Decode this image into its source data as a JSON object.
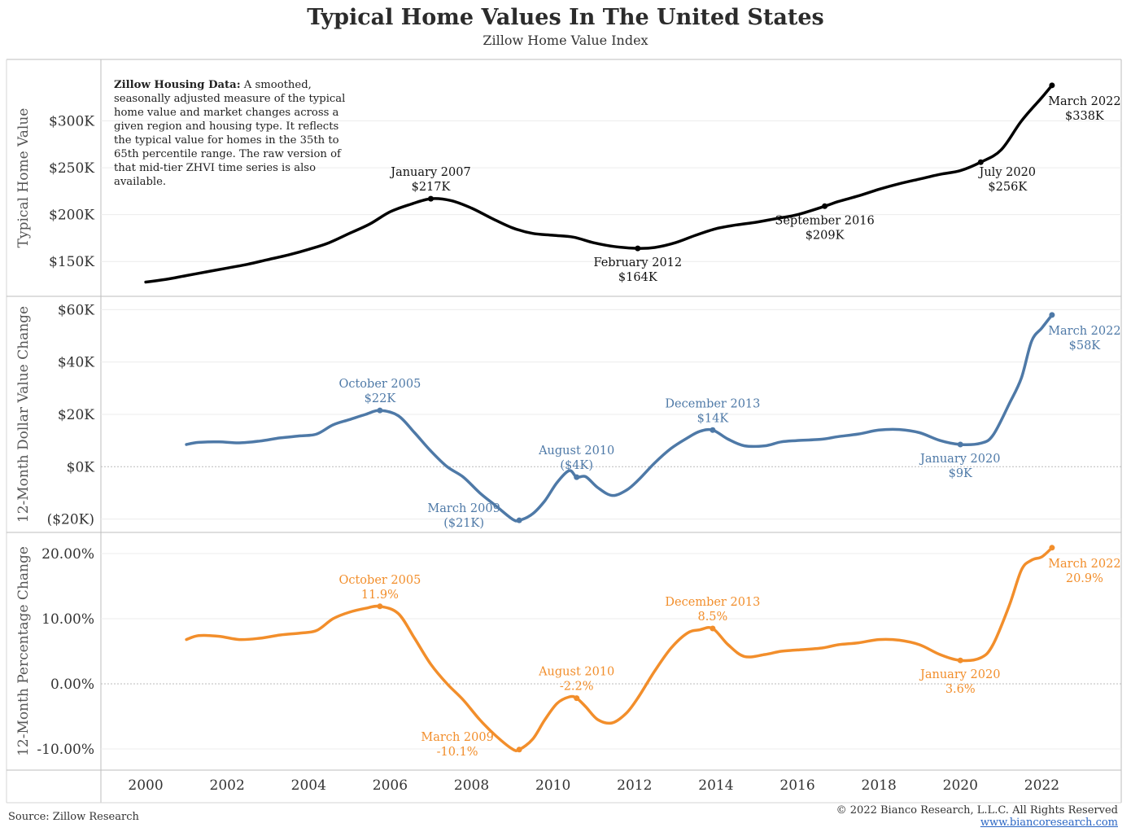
{
  "title": "Typical Home Values In The United States",
  "subtitle": "Zillow Home Value Index",
  "note": {
    "bold": "Zillow Housing Data:",
    "text": "A smoothed, seasonally adjusted measure of the typical home value and market changes across a given region and housing type. It reflects the typical value for homes in the 35th to 65th percentile range. The raw version of that mid-tier ZHVI time series is also available."
  },
  "footer": {
    "source": "Source: Zillow Research",
    "copyright": "© 2022 Bianco Research, L.L.C. All Rights Reserved",
    "url": "www.biancoresearch.com"
  },
  "chart_data": [
    {
      "type": "line",
      "id": "values",
      "ylabel": "Typical Home Value",
      "ylim": [
        125,
        350
      ],
      "yticks": [
        150,
        200,
        250,
        300
      ],
      "ytick_labels": [
        "$150K",
        "$200K",
        "$250K",
        "$300K"
      ],
      "color": "#000000",
      "x": [
        2000.0,
        2000.5,
        2001.0,
        2001.5,
        2002.0,
        2002.5,
        2003.0,
        2003.5,
        2004.0,
        2004.5,
        2005.0,
        2005.5,
        2006.0,
        2006.5,
        2007.0,
        2007.5,
        2008.0,
        2008.5,
        2009.0,
        2009.5,
        2010.0,
        2010.5,
        2011.0,
        2011.5,
        2012.08,
        2012.5,
        2013.0,
        2013.5,
        2014.0,
        2014.5,
        2015.0,
        2015.5,
        2016.0,
        2016.67,
        2017.0,
        2017.5,
        2018.0,
        2018.5,
        2019.0,
        2019.5,
        2020.0,
        2020.5,
        2021.0,
        2021.5,
        2022.0,
        2022.25
      ],
      "y": [
        128,
        131,
        135,
        139,
        143,
        147,
        152,
        157,
        163,
        170,
        180,
        190,
        203,
        211,
        217,
        215,
        207,
        196,
        186,
        180,
        178,
        176,
        170,
        166,
        164,
        165,
        170,
        178,
        185,
        189,
        192,
        196,
        200,
        209,
        214,
        220,
        227,
        233,
        238,
        243,
        247,
        256,
        269,
        300,
        325,
        338
      ],
      "annotations": [
        {
          "x": 2007.0,
          "y": 217,
          "lines": [
            "January 2007",
            "$217K"
          ],
          "pos": "above"
        },
        {
          "x": 2012.08,
          "y": 164,
          "lines": [
            "February 2012",
            "$164K"
          ],
          "pos": "below"
        },
        {
          "x": 2016.67,
          "y": 209,
          "lines": [
            "September 2016",
            "$209K"
          ],
          "pos": "below"
        },
        {
          "x": 2020.5,
          "y": 256,
          "lines": [
            "July 2020",
            "$256K"
          ],
          "pos": "below-right"
        },
        {
          "x": 2022.25,
          "y": 338,
          "lines": [
            "March 2022",
            "$338K"
          ],
          "pos": "right"
        }
      ]
    },
    {
      "type": "line",
      "id": "dollar_change",
      "ylabel": "12-Month Dollar Value Change",
      "ylim": [
        -22,
        62
      ],
      "yticks": [
        -20,
        0,
        20,
        40,
        60
      ],
      "ytick_labels": [
        "($20K)",
        "$0K",
        "$20K",
        "$40K",
        "$60K"
      ],
      "color": "#4e79a7",
      "x": [
        2001.0,
        2001.3,
        2001.8,
        2002.3,
        2002.8,
        2003.3,
        2003.8,
        2004.2,
        2004.6,
        2005.0,
        2005.4,
        2005.75,
        2006.2,
        2006.6,
        2007.0,
        2007.4,
        2007.8,
        2008.2,
        2008.6,
        2009.0,
        2009.17,
        2009.5,
        2009.8,
        2010.1,
        2010.4,
        2010.58,
        2010.8,
        2011.1,
        2011.45,
        2011.8,
        2012.1,
        2012.5,
        2012.9,
        2013.3,
        2013.6,
        2013.92,
        2014.3,
        2014.7,
        2015.2,
        2015.6,
        2016.0,
        2016.6,
        2017.0,
        2017.5,
        2018.0,
        2018.5,
        2019.0,
        2019.5,
        2020.0,
        2020.5,
        2020.8,
        2021.2,
        2021.5,
        2021.75,
        2022.0,
        2022.25
      ],
      "y": [
        8.5,
        9.3,
        9.5,
        9.1,
        9.8,
        11.0,
        11.8,
        12.5,
        16.0,
        18.0,
        20.0,
        21.5,
        19.5,
        13.0,
        6.0,
        0.0,
        -4.0,
        -10.0,
        -15.0,
        -20.0,
        -20.5,
        -18.0,
        -13.0,
        -6.0,
        -1.5,
        -4.0,
        -3.8,
        -8.0,
        -11.0,
        -9.0,
        -5.0,
        1.5,
        7.0,
        11.0,
        13.5,
        14.0,
        10.5,
        8.0,
        8.0,
        9.5,
        10.0,
        10.5,
        11.5,
        12.5,
        14.0,
        14.2,
        13.0,
        10.0,
        8.5,
        9.0,
        12.0,
        24.0,
        34.0,
        48.0,
        53.0,
        58.0
      ],
      "annotations": [
        {
          "x": 2005.75,
          "y": 21.5,
          "lines": [
            "October 2005",
            "$22K"
          ],
          "pos": "above"
        },
        {
          "x": 2009.17,
          "y": -20.5,
          "lines": [
            "March 2009",
            "($21K)"
          ],
          "pos": "left"
        },
        {
          "x": 2010.58,
          "y": -4.0,
          "lines": [
            "August 2010",
            "($4K)"
          ],
          "pos": "above"
        },
        {
          "x": 2013.92,
          "y": 14.0,
          "lines": [
            "December 2013",
            "$14K"
          ],
          "pos": "above"
        },
        {
          "x": 2020.0,
          "y": 8.5,
          "lines": [
            "January 2020",
            "$9K"
          ],
          "pos": "below"
        },
        {
          "x": 2022.25,
          "y": 58.0,
          "lines": [
            "March 2022",
            "$58K"
          ],
          "pos": "right"
        }
      ]
    },
    {
      "type": "line",
      "id": "pct_change",
      "ylabel": "12-Month Percentage Change",
      "xlabel_ticks": [
        "2000",
        "2002",
        "2004",
        "2006",
        "2008",
        "2010",
        "2012",
        "2014",
        "2016",
        "2018",
        "2020",
        "2022"
      ],
      "xlim": [
        1998.9,
        2023.95
      ],
      "ylim": [
        -12,
        22
      ],
      "yticks": [
        -10,
        0,
        10,
        20
      ],
      "ytick_labels": [
        "-10.00%",
        "0.00%",
        "10.00%",
        "20.00%"
      ],
      "color": "#f28e2b",
      "x": [
        2001.0,
        2001.3,
        2001.8,
        2002.3,
        2002.8,
        2003.3,
        2003.8,
        2004.2,
        2004.6,
        2005.0,
        2005.4,
        2005.75,
        2006.2,
        2006.6,
        2007.0,
        2007.4,
        2007.8,
        2008.2,
        2008.6,
        2009.0,
        2009.17,
        2009.5,
        2009.8,
        2010.1,
        2010.4,
        2010.58,
        2010.8,
        2011.1,
        2011.45,
        2011.8,
        2012.1,
        2012.5,
        2012.9,
        2013.3,
        2013.6,
        2013.92,
        2014.3,
        2014.7,
        2015.2,
        2015.6,
        2016.0,
        2016.6,
        2017.0,
        2017.5,
        2018.0,
        2018.5,
        2019.0,
        2019.5,
        2020.0,
        2020.5,
        2020.8,
        2021.2,
        2021.5,
        2021.75,
        2022.0,
        2022.25
      ],
      "y": [
        6.8,
        7.4,
        7.3,
        6.8,
        7.0,
        7.5,
        7.8,
        8.2,
        10.0,
        11.0,
        11.6,
        11.9,
        10.8,
        7.0,
        3.0,
        0.0,
        -2.5,
        -5.5,
        -8.0,
        -10.0,
        -10.1,
        -8.5,
        -5.5,
        -3.0,
        -2.0,
        -2.2,
        -3.5,
        -5.5,
        -6.0,
        -4.5,
        -2.0,
        2.0,
        5.5,
        7.8,
        8.3,
        8.5,
        6.0,
        4.2,
        4.5,
        5.0,
        5.2,
        5.5,
        6.0,
        6.3,
        6.8,
        6.7,
        6.0,
        4.5,
        3.6,
        4.0,
        6.0,
        12.0,
        17.5,
        19.0,
        19.5,
        20.9
      ],
      "annotations": [
        {
          "x": 2005.75,
          "y": 11.9,
          "lines": [
            "October 2005",
            "11.9%"
          ],
          "pos": "above"
        },
        {
          "x": 2009.17,
          "y": -10.1,
          "lines": [
            "March 2009",
            "-10.1%"
          ],
          "pos": "left-below"
        },
        {
          "x": 2010.58,
          "y": -2.2,
          "lines": [
            "August 2010",
            "-2.2%"
          ],
          "pos": "above"
        },
        {
          "x": 2013.92,
          "y": 8.5,
          "lines": [
            "December 2013",
            "8.5%"
          ],
          "pos": "above"
        },
        {
          "x": 2020.0,
          "y": 3.6,
          "lines": [
            "January 2020",
            "3.6%"
          ],
          "pos": "below"
        },
        {
          "x": 2022.25,
          "y": 20.9,
          "lines": [
            "March 2022",
            "20.9%"
          ],
          "pos": "right"
        }
      ]
    }
  ]
}
